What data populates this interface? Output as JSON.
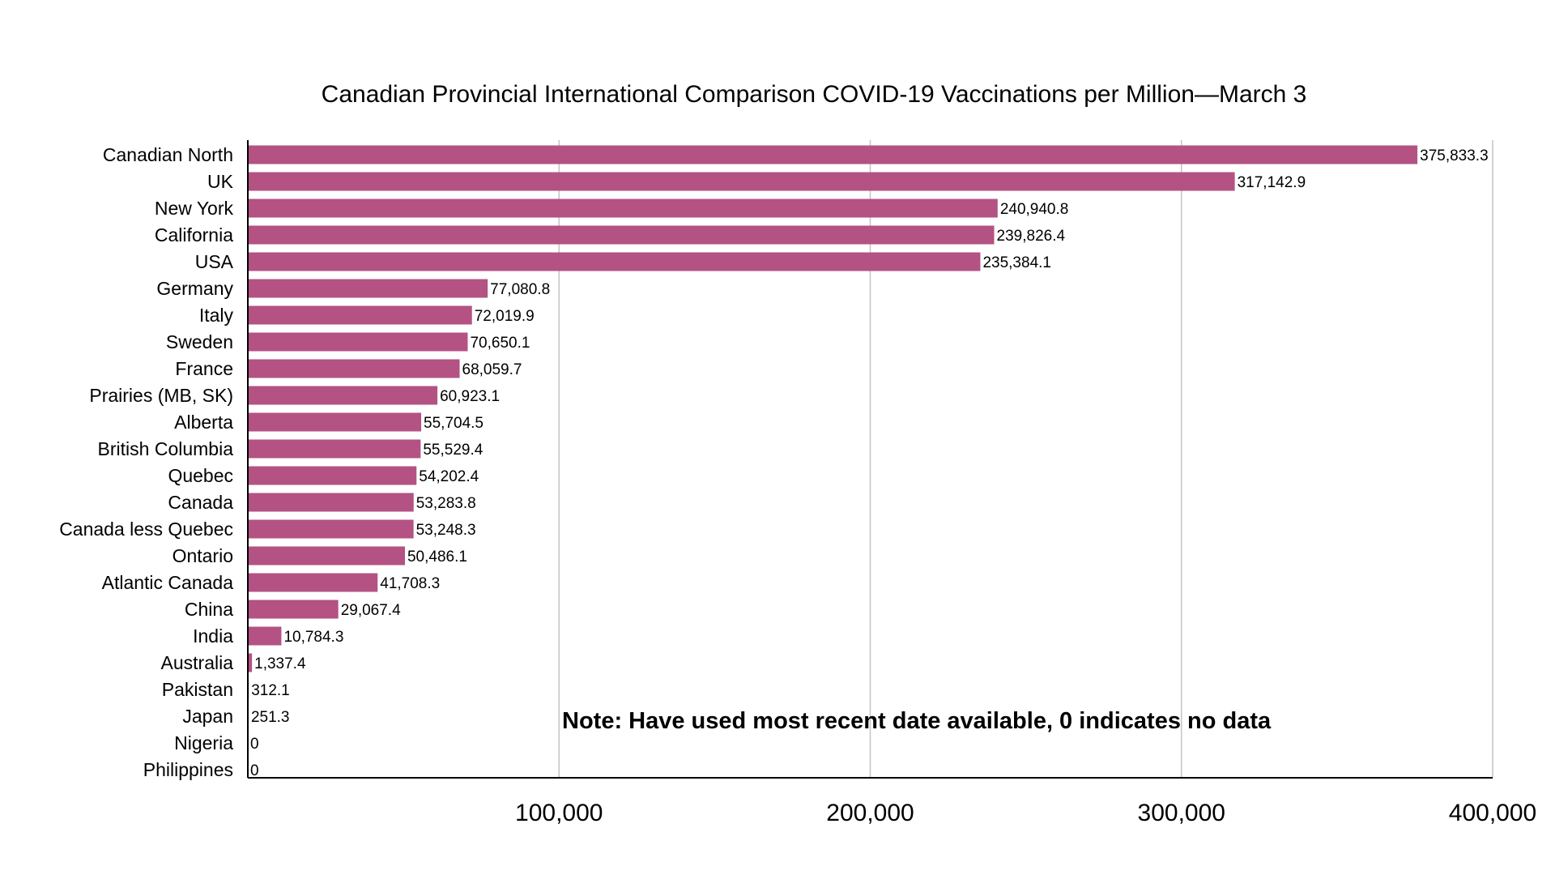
{
  "chart_data": {
    "type": "bar",
    "orientation": "horizontal",
    "title": "Canadian Provincial International Comparison COVID-19 Vaccinations per Million—March 3",
    "xlabel": "",
    "ylabel": "",
    "xlim": [
      0,
      400000
    ],
    "x_ticks": [
      100000,
      200000,
      300000,
      400000
    ],
    "x_tick_labels": [
      "100,000",
      "200,000",
      "300,000",
      "400,000"
    ],
    "grid": "vertical",
    "bar_color": "#b35283",
    "categories": [
      "Canadian North",
      "UK",
      "New York",
      "California",
      "USA",
      "Germany",
      "Italy",
      "Sweden",
      "France",
      "Prairies (MB, SK)",
      "Alberta",
      "British Columbia",
      "Quebec",
      "Canada",
      "Canada less Quebec",
      "Ontario",
      "Atlantic Canada",
      "China",
      "India",
      "Australia",
      "Pakistan",
      "Japan",
      "Nigeria",
      "Philippines"
    ],
    "values": [
      375833.3,
      317142.9,
      240940.8,
      239826.4,
      235384.1,
      77080.8,
      72019.9,
      70650.1,
      68059.7,
      60923.1,
      55704.5,
      55529.4,
      54202.4,
      53283.8,
      53248.3,
      50486.1,
      41708.3,
      29067.4,
      10784.3,
      1337.4,
      312.1,
      251.3,
      0,
      0
    ],
    "data_labels": [
      "375,833.3",
      "317,142.9",
      "240,940.8",
      "239,826.4",
      "235,384.1",
      "77,080.8",
      "72,019.9",
      "70,650.1",
      "68,059.7",
      "60,923.1",
      "55,704.5",
      "55,529.4",
      "54,202.4",
      "53,283.8",
      "53,248.3",
      "50,486.1",
      "41,708.3",
      "29,067.4",
      "10,784.3",
      "1,337.4",
      "312.1",
      "251.3",
      "0",
      "0"
    ],
    "annotations": [
      "Note:  Have used most recent date available, 0 indicates no data"
    ]
  }
}
